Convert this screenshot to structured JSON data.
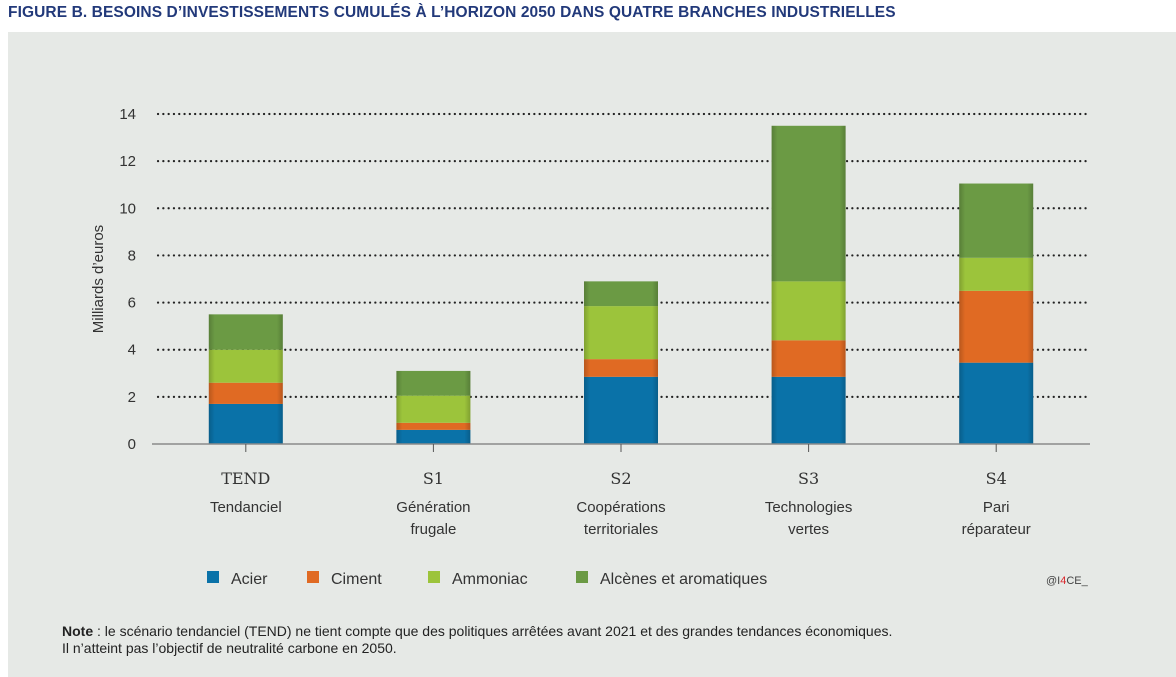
{
  "figure_title": "FIGURE B. BESOINS D’INVESTISSEMENTS CUMULÉS À L’HORIZON 2050 DANS QUATRE BRANCHES INDUSTRIELLES",
  "note": {
    "label": "Note",
    "line1": " : le scénario tendanciel (TEND) ne tient compte que des politiques arrêtées avant 2021 et des grandes tendances économiques.",
    "line2": "Il n’atteint pas l’objectif de neutralité carbone en 2050."
  },
  "credit": {
    "prefix": "@I",
    "highlight": "4",
    "suffix": "CE_",
    "highlight_color": "#d9262b"
  },
  "chart_data": {
    "type": "bar",
    "stacked": true,
    "title": "Besoins d’investissements cumulés à l’horizon 2050 dans quatre branches industrielles",
    "xlabel": "",
    "ylabel": "Milliards d’euros",
    "ylim": [
      0,
      14
    ],
    "yticks": [
      0,
      2,
      4,
      6,
      8,
      10,
      12,
      14
    ],
    "grid": "horizontal-dotted",
    "legend_position": "bottom",
    "categories": [
      {
        "code": "TEND",
        "name_lines": [
          "Tendanciel"
        ]
      },
      {
        "code": "S1",
        "name_lines": [
          "Génération",
          "frugale"
        ]
      },
      {
        "code": "S2",
        "name_lines": [
          "Coopérations",
          "territoriales"
        ]
      },
      {
        "code": "S3",
        "name_lines": [
          "Technologies",
          "vertes"
        ]
      },
      {
        "code": "S4",
        "name_lines": [
          "Pari",
          "réparateur"
        ]
      }
    ],
    "series": [
      {
        "name": "Acier",
        "color": "#0a72a8",
        "values": [
          1.7,
          0.6,
          2.85,
          2.85,
          3.45
        ]
      },
      {
        "name": "Ciment",
        "color": "#e06a23",
        "values": [
          0.9,
          0.3,
          0.75,
          1.55,
          3.05
        ]
      },
      {
        "name": "Ammoniac",
        "color": "#9cc43b",
        "values": [
          1.4,
          1.15,
          2.25,
          2.5,
          1.4
        ]
      },
      {
        "name": "Alcènes et aromatiques",
        "color": "#6b9a44",
        "values": [
          1.5,
          1.05,
          1.05,
          6.6,
          3.15
        ]
      }
    ]
  }
}
